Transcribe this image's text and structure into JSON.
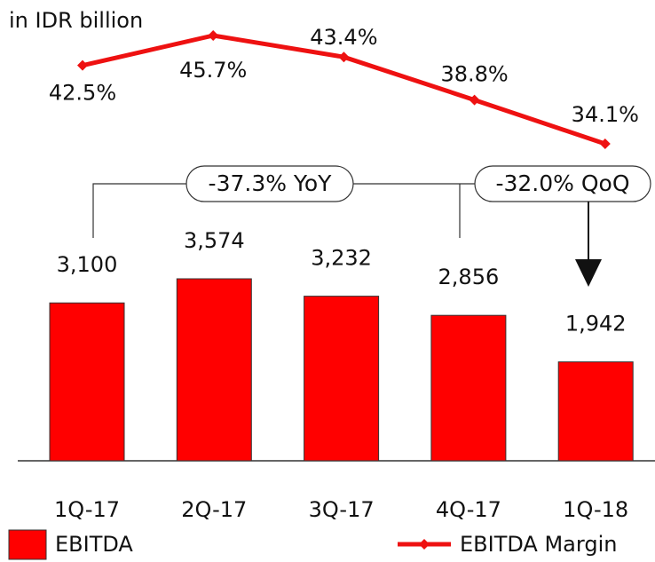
{
  "chart_data": {
    "type": "bar",
    "unit_label": "in IDR billion",
    "categories": [
      "1Q-17",
      "2Q-17",
      "3Q-17",
      "4Q-17",
      "1Q-18"
    ],
    "series": [
      {
        "name": "EBITDA",
        "type": "bar",
        "color": "#ff0000",
        "values": [
          3100,
          3574,
          3232,
          2856,
          1942
        ],
        "value_labels": [
          "3,100",
          "3,574",
          "3,232",
          "2,856",
          "1,942"
        ]
      },
      {
        "name": "EBITDA Margin",
        "type": "line",
        "axis": "y2",
        "color": "#ee1111",
        "values": [
          42.5,
          45.7,
          43.4,
          38.8,
          34.1
        ],
        "value_labels": [
          "42.5%",
          "45.7%",
          "43.4%",
          "38.8%",
          "34.1%"
        ]
      }
    ],
    "annotations": [
      "-37.3% YoY",
      "-32.0% QoQ"
    ]
  }
}
